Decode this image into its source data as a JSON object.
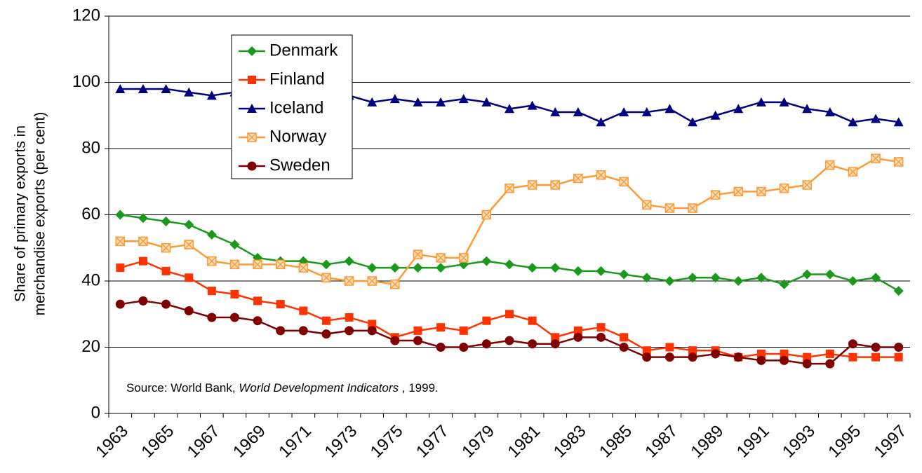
{
  "chart_data": {
    "type": "line",
    "ylabel": [
      "Share of primary exports in",
      "merchandise exports (per cent)"
    ],
    "source": [
      "Source: World Bank, ",
      "World Development Indicators",
      " , 1999."
    ],
    "categories": [
      "1963",
      null,
      "1965",
      null,
      "1967",
      null,
      "1969",
      null,
      "1971",
      null,
      "1973",
      null,
      "1975",
      null,
      "1977",
      null,
      "1979",
      null,
      "1981",
      null,
      "1983",
      null,
      "1985",
      null,
      "1987",
      null,
      "1989",
      null,
      "1991",
      null,
      "1993",
      null,
      "1995",
      null,
      "1997"
    ],
    "ylim": [
      0,
      120
    ],
    "yticks": [
      0,
      20,
      40,
      60,
      80,
      100,
      120
    ],
    "grid": true,
    "legend": "upper left",
    "series": [
      {
        "name": "Denmark",
        "color": "#1a9a1a",
        "marker": "diamond",
        "values": [
          60,
          59,
          58,
          57,
          54,
          51,
          47,
          46,
          46,
          45,
          46,
          44,
          44,
          44,
          44,
          45,
          46,
          45,
          44,
          44,
          43,
          43,
          42,
          41,
          40,
          41,
          41,
          40,
          41,
          39,
          42,
          42,
          40,
          41,
          37
        ]
      },
      {
        "name": "Finland",
        "color": "#ff3300",
        "marker": "square",
        "values": [
          44,
          46,
          43,
          41,
          37,
          36,
          34,
          33,
          31,
          28,
          29,
          27,
          23,
          25,
          26,
          25,
          28,
          30,
          28,
          23,
          25,
          26,
          23,
          19,
          20,
          19,
          19,
          17,
          18,
          18,
          17,
          18,
          17,
          17,
          17
        ]
      },
      {
        "name": "Iceland",
        "color": "#000080",
        "marker": "triangle",
        "values": [
          98,
          98,
          98,
          97,
          96,
          97,
          97,
          97,
          97,
          97,
          96,
          94,
          95,
          94,
          94,
          95,
          94,
          92,
          93,
          91,
          91,
          88,
          91,
          91,
          92,
          88,
          90,
          92,
          94,
          94,
          92,
          91,
          88,
          89,
          88
        ]
      },
      {
        "name": "Norway",
        "color": "#ff9933",
        "marker": "xsquare",
        "values": [
          52,
          52,
          50,
          51,
          46,
          45,
          45,
          45,
          44,
          41,
          40,
          40,
          39,
          48,
          47,
          47,
          60,
          68,
          69,
          69,
          71,
          72,
          70,
          63,
          62,
          62,
          66,
          67,
          67,
          68,
          69,
          75,
          73,
          77,
          76
        ]
      },
      {
        "name": "Sweden",
        "color": "#800000",
        "marker": "circle",
        "values": [
          33,
          34,
          33,
          31,
          29,
          29,
          28,
          25,
          25,
          24,
          25,
          25,
          22,
          22,
          20,
          20,
          21,
          22,
          21,
          21,
          23,
          23,
          20,
          17,
          17,
          17,
          18,
          17,
          16,
          16,
          15,
          15,
          21,
          20,
          20
        ]
      }
    ]
  }
}
